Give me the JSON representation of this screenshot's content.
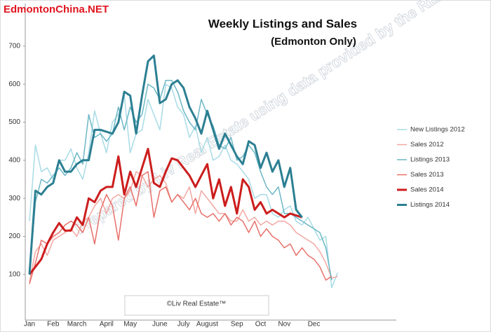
{
  "chart_data": {
    "type": "line",
    "brand": "EdmontonChina.NET",
    "title": "Weekly Listings and Sales",
    "subtitle": "(Edmonton Only)",
    "watermark": "Prepared by Liv Real Estate using data provided by the REALTORS® Association of Edmonton.",
    "copyright": "©Liv Real Estate™",
    "categories": [
      "Jan",
      null,
      null,
      null,
      "Feb",
      null,
      null,
      null,
      "March",
      null,
      null,
      null,
      null,
      "April",
      null,
      null,
      null,
      "May",
      null,
      null,
      null,
      null,
      "June",
      null,
      null,
      null,
      "July",
      null,
      null,
      null,
      "August",
      null,
      null,
      null,
      null,
      "Sep",
      null,
      null,
      null,
      "Oct",
      null,
      null,
      null,
      "Nov",
      null,
      null,
      null,
      null,
      "Dec",
      null,
      null,
      null,
      null
    ],
    "ylim": [
      -20,
      812
    ],
    "yticks": [
      100,
      200,
      300,
      400,
      500,
      600,
      700
    ],
    "grid": false,
    "legend": "right",
    "series": [
      {
        "name": "New Listings 2012",
        "color": "#a8dbe5",
        "line_width": 1.5,
        "values": [
          240,
          440,
          370,
          380,
          350,
          400,
          400,
          430,
          380,
          350,
          420,
          530,
          470,
          420,
          500,
          520,
          570,
          420,
          470,
          480,
          560,
          520,
          480,
          600,
          590,
          540,
          520,
          460,
          490,
          420,
          460,
          400,
          410,
          440,
          400,
          390,
          370,
          350,
          300,
          310,
          310,
          260,
          250,
          270,
          280,
          240,
          230,
          250,
          220,
          190,
          200,
          65,
          105
        ]
      },
      {
        "name": "Sales 2012",
        "color": "#f2a8a2",
        "line_width": 1.5,
        "values": [
          80,
          160,
          180,
          150,
          190,
          200,
          210,
          220,
          200,
          240,
          250,
          280,
          300,
          260,
          300,
          310,
          300,
          320,
          370,
          360,
          330,
          350,
          360,
          340,
          290,
          310,
          300,
          330,
          260,
          320,
          300,
          280,
          260,
          260,
          240,
          240,
          270,
          240,
          250,
          230,
          240,
          230,
          240,
          240,
          230,
          210,
          200,
          190,
          180,
          160,
          130,
          90,
          95
        ]
      },
      {
        "name": "Listings 2013",
        "color": "#6cb7c5",
        "line_width": 1.5,
        "values": [
          100,
          290,
          350,
          340,
          360,
          380,
          360,
          380,
          420,
          390,
          520,
          460,
          470,
          450,
          470,
          540,
          480,
          540,
          500,
          520,
          600,
          590,
          560,
          610,
          610,
          580,
          530,
          500,
          480,
          560,
          520,
          490,
          440,
          430,
          460,
          400,
          410,
          440,
          420,
          370,
          330,
          310,
          330,
          260,
          260,
          250,
          240,
          230,
          220,
          210,
          170,
          85,
          null
        ]
      },
      {
        "name": "Sales 2013",
        "color": "#e8706b",
        "line_width": 1.5,
        "values": [
          75,
          130,
          190,
          180,
          200,
          210,
          230,
          240,
          230,
          210,
          250,
          180,
          270,
          310,
          280,
          190,
          300,
          330,
          280,
          360,
          370,
          250,
          320,
          330,
          290,
          310,
          290,
          270,
          300,
          260,
          250,
          260,
          240,
          260,
          230,
          250,
          240,
          210,
          240,
          200,
          220,
          200,
          190,
          170,
          180,
          150,
          170,
          150,
          140,
          120,
          85,
          95,
          null
        ]
      },
      {
        "name": "Sales 2014",
        "color": "#cc1d1d",
        "line_width": 3,
        "values": [
          100,
          120,
          140,
          180,
          210,
          235,
          215,
          215,
          250,
          230,
          300,
          290,
          320,
          330,
          330,
          410,
          310,
          370,
          330,
          380,
          430,
          340,
          330,
          370,
          405,
          400,
          380,
          360,
          330,
          360,
          390,
          300,
          350,
          280,
          330,
          260,
          350,
          330,
          270,
          290,
          260,
          270,
          260,
          250,
          260,
          255,
          250,
          null,
          null,
          null,
          null,
          null,
          null
        ]
      },
      {
        "name": "Listings 2014",
        "color": "#2c7f92",
        "line_width": 3,
        "values": [
          100,
          320,
          310,
          330,
          340,
          400,
          370,
          370,
          390,
          400,
          400,
          480,
          480,
          475,
          470,
          500,
          580,
          570,
          470,
          570,
          660,
          675,
          550,
          560,
          600,
          610,
          590,
          540,
          510,
          470,
          530,
          480,
          430,
          470,
          440,
          410,
          390,
          450,
          440,
          380,
          420,
          370,
          400,
          330,
          380,
          270,
          250,
          null,
          null,
          null,
          null,
          null,
          null
        ]
      }
    ]
  }
}
